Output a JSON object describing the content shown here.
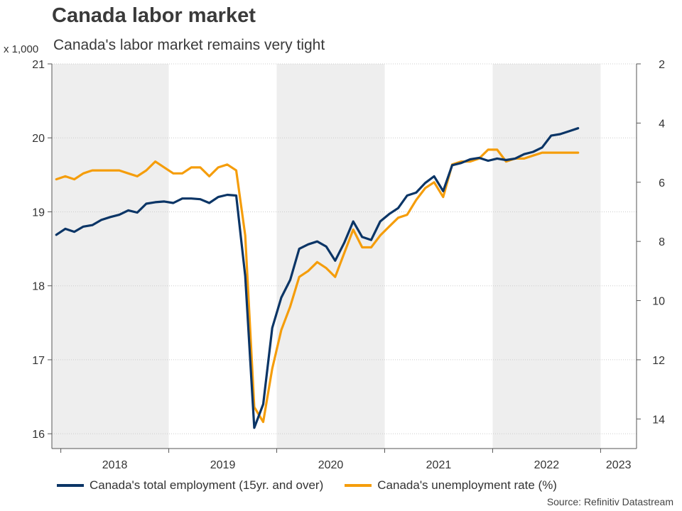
{
  "header": {
    "title": "Canada labor market",
    "subtitle": "Canada's labor market remains very tight",
    "unit_label": "x 1,000",
    "source": "Source: Refinitiv Datastream"
  },
  "legend": {
    "employment": "Canada's total employment (15yr. and over)",
    "unemployment": "Canada's unemployment rate (%)"
  },
  "colors": {
    "employment": "#0b3566",
    "unemployment": "#f59d0b",
    "shade": "#eeeeee",
    "grid": "#cccccc"
  },
  "chart_data": {
    "type": "line",
    "title": "Canada labor market",
    "subtitle": "Canada's labor market remains very tight",
    "xlabel": "",
    "ylabel_left": "x 1,000",
    "ylabel_right": "%",
    "x_ticks": [
      "2018",
      "2019",
      "2020",
      "2021",
      "2022",
      "2023"
    ],
    "x_start": 2017.917,
    "x_end": 2023.333,
    "y_left": {
      "min": 15.8,
      "max": 21,
      "ticks": [
        16,
        17,
        18,
        19,
        20,
        21
      ]
    },
    "y_right": {
      "min": 2,
      "max": 15,
      "inverted": true,
      "ticks": [
        2,
        4,
        6,
        8,
        10,
        12,
        14
      ]
    },
    "shaded_years": [
      [
        2017.917,
        2019.0
      ],
      [
        2020.0,
        2021.0
      ],
      [
        2022.0,
        2023.0
      ]
    ],
    "series": [
      {
        "name": "Canada's total employment (15yr. and over)",
        "axis": "left",
        "start": "2017-12",
        "values": [
          18.69,
          18.77,
          18.73,
          18.8,
          18.82,
          18.89,
          18.93,
          18.96,
          19.02,
          18.99,
          19.11,
          19.13,
          19.14,
          19.12,
          19.18,
          19.18,
          19.17,
          19.12,
          19.2,
          19.23,
          19.22,
          18.13,
          16.08,
          16.4,
          17.43,
          17.84,
          18.08,
          18.5,
          18.56,
          18.6,
          18.53,
          18.34,
          18.58,
          18.87,
          18.66,
          18.62,
          18.87,
          18.97,
          19.05,
          19.22,
          19.26,
          19.39,
          19.48,
          19.28,
          19.63,
          19.66,
          19.71,
          19.73,
          19.69,
          19.72,
          19.7,
          19.72,
          19.78,
          19.81,
          19.87,
          20.03,
          20.05,
          20.09,
          20.13
        ]
      },
      {
        "name": "Canada's unemployment rate (%)",
        "axis": "right",
        "start": "2017-12",
        "values": [
          5.9,
          5.8,
          5.9,
          5.7,
          5.6,
          5.6,
          5.6,
          5.6,
          5.7,
          5.8,
          5.6,
          5.3,
          5.5,
          5.7,
          5.7,
          5.5,
          5.5,
          5.8,
          5.5,
          5.4,
          5.6,
          7.8,
          13.6,
          14.1,
          12.3,
          11.0,
          10.2,
          9.2,
          9.0,
          8.7,
          8.9,
          9.2,
          8.4,
          7.6,
          8.2,
          8.2,
          7.8,
          7.5,
          7.2,
          7.1,
          6.6,
          6.2,
          6.0,
          6.5,
          5.4,
          5.3,
          5.3,
          5.2,
          4.9,
          4.9,
          5.3,
          5.2,
          5.2,
          5.1,
          5.0,
          5.0,
          5.0,
          5.0,
          5.0
        ]
      }
    ]
  }
}
